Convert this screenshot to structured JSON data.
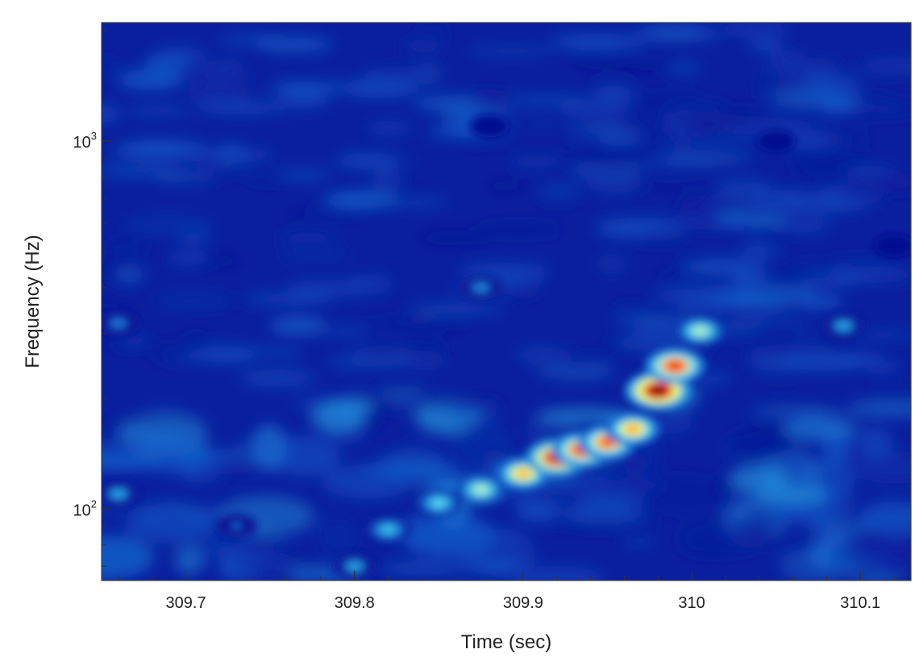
{
  "chart_data": {
    "type": "heatmap",
    "title": "",
    "xlabel": "Time (sec)",
    "ylabel": "Frequency (Hz)",
    "x_range": [
      309.65,
      310.13
    ],
    "y_range": [
      64,
      2100
    ],
    "y_scale": "log",
    "x_ticks": [
      {
        "value": 309.7,
        "label": "309.7"
      },
      {
        "value": 309.8,
        "label": "309.8"
      },
      {
        "value": 309.9,
        "label": "309.9"
      },
      {
        "value": 310.0,
        "label": "310"
      },
      {
        "value": 310.1,
        "label": "310.1"
      }
    ],
    "y_ticks": [
      {
        "value": 100,
        "base": "10",
        "exp": "2"
      },
      {
        "value": 1000,
        "base": "10",
        "exp": "3"
      }
    ],
    "colormap": [
      "#00007f",
      "#0a1f9e",
      "#1466d2",
      "#2fb4e6",
      "#7fe6f0",
      "#ffff66",
      "#ff8000",
      "#e60000",
      "#7f0000"
    ],
    "background_color": "#0a1f9e",
    "grid": false,
    "legend": "none",
    "signal_track": [
      {
        "t": 309.8,
        "f": 70,
        "energy": 0.35
      },
      {
        "t": 309.82,
        "f": 88,
        "energy": 0.4
      },
      {
        "t": 309.85,
        "f": 104,
        "energy": 0.45
      },
      {
        "t": 309.875,
        "f": 113,
        "energy": 0.55
      },
      {
        "t": 309.9,
        "f": 125,
        "energy": 0.7
      },
      {
        "t": 309.92,
        "f": 138,
        "energy": 0.92
      },
      {
        "t": 309.935,
        "f": 145,
        "energy": 0.85
      },
      {
        "t": 309.95,
        "f": 152,
        "energy": 0.8
      },
      {
        "t": 309.965,
        "f": 165,
        "energy": 0.72
      },
      {
        "t": 309.98,
        "f": 210,
        "energy": 1.0
      },
      {
        "t": 309.99,
        "f": 245,
        "energy": 0.85
      },
      {
        "t": 310.005,
        "f": 305,
        "energy": 0.55
      }
    ],
    "noise_blobs": [
      {
        "t": 309.66,
        "f": 110,
        "energy": 0.35
      },
      {
        "t": 309.73,
        "f": 90,
        "energy": 0.25
      },
      {
        "t": 309.66,
        "f": 320,
        "energy": 0.28
      },
      {
        "t": 309.875,
        "f": 400,
        "energy": 0.3
      },
      {
        "t": 310.09,
        "f": 315,
        "energy": 0.35
      },
      {
        "t": 309.88,
        "f": 1100,
        "energy": 0.18
      },
      {
        "t": 310.05,
        "f": 1000,
        "energy": 0.18
      },
      {
        "t": 310.12,
        "f": 520,
        "energy": 0.2
      }
    ]
  }
}
